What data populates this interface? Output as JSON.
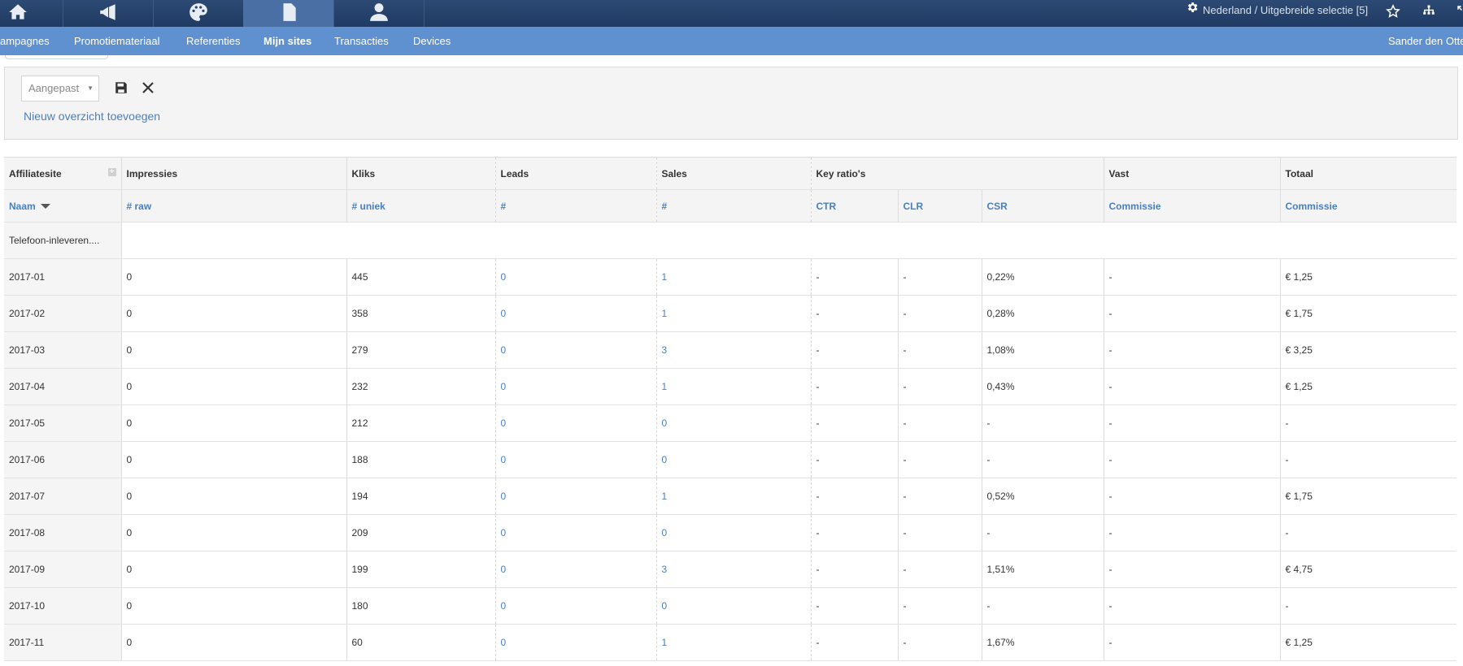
{
  "topbar": {
    "icons": [
      "home-icon",
      "megaphone-icon",
      "palette-icon",
      "document-icon",
      "user-icon"
    ],
    "active_index": 3,
    "region_label": "Nederland / Uitgebreide selectie [5]"
  },
  "nav": {
    "items": [
      "ampagnes",
      "Promotiemateriaal",
      "Referenties",
      "Mijn sites",
      "Transacties",
      "Devices"
    ],
    "active": "Mijn sites",
    "user": "Sander den Otte"
  },
  "view": {
    "selected": "Aangepast",
    "add_label": "Nieuw overzicht toevoegen"
  },
  "table": {
    "group_headers": {
      "site": "Affiliatesite",
      "impressions": "Impressies",
      "clicks": "Kliks",
      "leads": "Leads",
      "sales": "Sales",
      "ratios": "Key ratio's",
      "fixed": "Vast",
      "total": "Totaal"
    },
    "sub_headers": {
      "name": "Naam",
      "raw": "# raw",
      "unique": "# uniek",
      "leads": "#",
      "sales": "#",
      "ctr": "CTR",
      "clr": "CLR",
      "csr": "CSR",
      "fixed": "Commissie",
      "total": "Commissie"
    },
    "site_row": "Telefoon-inleveren....",
    "rows": [
      {
        "period": "2017-01",
        "raw": "0",
        "unique": "445",
        "leads": "0",
        "sales": "1",
        "ctr": "-",
        "clr": "-",
        "csr": "0,22%",
        "fixed": "-",
        "total": "€ 1,25"
      },
      {
        "period": "2017-02",
        "raw": "0",
        "unique": "358",
        "leads": "0",
        "sales": "1",
        "ctr": "-",
        "clr": "-",
        "csr": "0,28%",
        "fixed": "-",
        "total": "€ 1,75"
      },
      {
        "period": "2017-03",
        "raw": "0",
        "unique": "279",
        "leads": "0",
        "sales": "3",
        "ctr": "-",
        "clr": "-",
        "csr": "1,08%",
        "fixed": "-",
        "total": "€ 3,25"
      },
      {
        "period": "2017-04",
        "raw": "0",
        "unique": "232",
        "leads": "0",
        "sales": "1",
        "ctr": "-",
        "clr": "-",
        "csr": "0,43%",
        "fixed": "-",
        "total": "€ 1,25"
      },
      {
        "period": "2017-05",
        "raw": "0",
        "unique": "212",
        "leads": "0",
        "sales": "0",
        "ctr": "-",
        "clr": "-",
        "csr": "-",
        "fixed": "-",
        "total": "-"
      },
      {
        "period": "2017-06",
        "raw": "0",
        "unique": "188",
        "leads": "0",
        "sales": "0",
        "ctr": "-",
        "clr": "-",
        "csr": "-",
        "fixed": "-",
        "total": "-"
      },
      {
        "period": "2017-07",
        "raw": "0",
        "unique": "194",
        "leads": "0",
        "sales": "1",
        "ctr": "-",
        "clr": "-",
        "csr": "0,52%",
        "fixed": "-",
        "total": "€ 1,75"
      },
      {
        "period": "2017-08",
        "raw": "0",
        "unique": "209",
        "leads": "0",
        "sales": "0",
        "ctr": "-",
        "clr": "-",
        "csr": "-",
        "fixed": "-",
        "total": "-"
      },
      {
        "period": "2017-09",
        "raw": "0",
        "unique": "199",
        "leads": "0",
        "sales": "3",
        "ctr": "-",
        "clr": "-",
        "csr": "1,51%",
        "fixed": "-",
        "total": "€ 4,75"
      },
      {
        "period": "2017-10",
        "raw": "0",
        "unique": "180",
        "leads": "0",
        "sales": "0",
        "ctr": "-",
        "clr": "-",
        "csr": "-",
        "fixed": "-",
        "total": "-"
      },
      {
        "period": "2017-11",
        "raw": "0",
        "unique": "60",
        "leads": "0",
        "sales": "1",
        "ctr": "-",
        "clr": "-",
        "csr": "1,67%",
        "fixed": "-",
        "total": "€ 1,25"
      }
    ]
  },
  "colors": {
    "topbar": "#1f3a63",
    "nav": "#5f90cf",
    "link": "#4a7fc0"
  }
}
